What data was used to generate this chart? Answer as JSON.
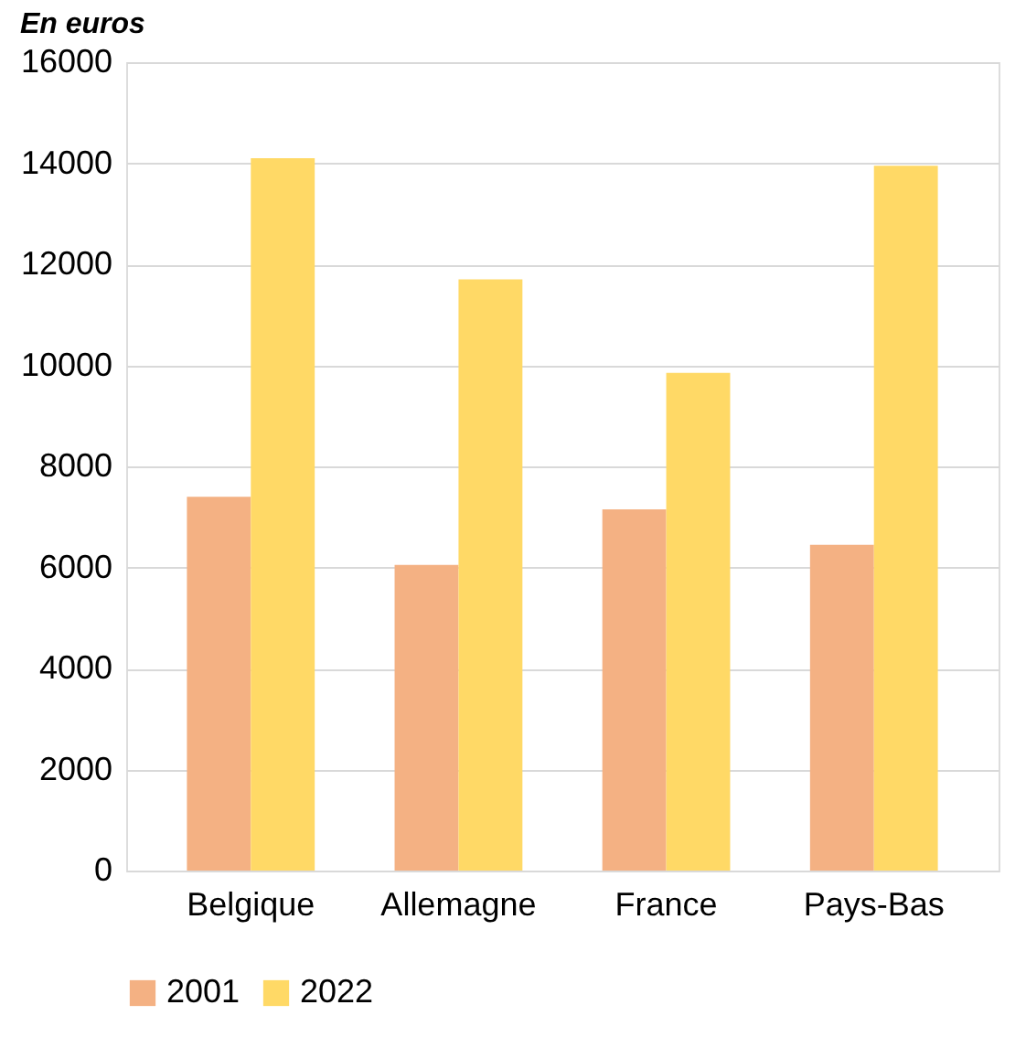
{
  "chart_data": {
    "type": "bar",
    "title": "En euros",
    "categories": [
      "Belgique",
      "Allemagne",
      "France",
      "Pays-Bas"
    ],
    "series": [
      {
        "name": "2001",
        "color": "#f4b183",
        "values": [
          7400,
          6050,
          7150,
          6450
        ]
      },
      {
        "name": "2022",
        "color": "#ffd966",
        "values": [
          14100,
          11700,
          9850,
          13950
        ]
      }
    ],
    "ylim": [
      0,
      16000
    ],
    "yticks": [
      0,
      2000,
      4000,
      6000,
      8000,
      10000,
      12000,
      14000,
      16000
    ],
    "grid": "y",
    "legend": "bottom"
  }
}
